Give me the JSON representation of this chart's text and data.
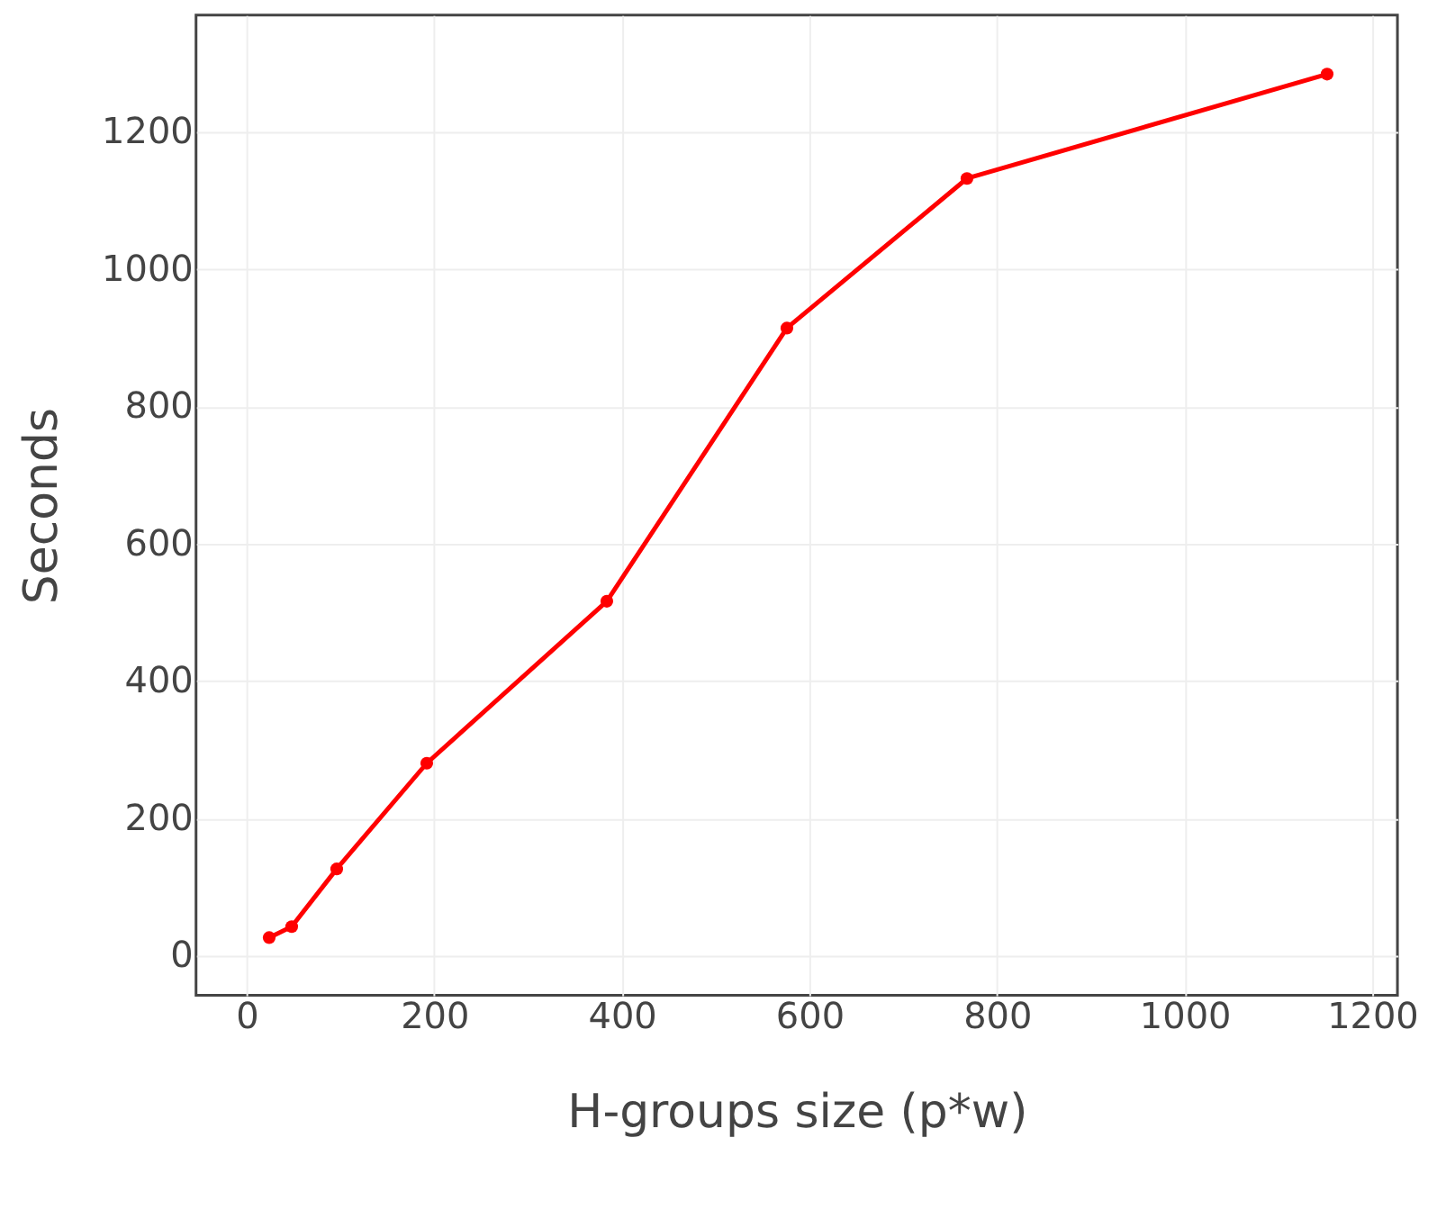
{
  "chart_data": {
    "type": "line",
    "xlabel": "H-groups size (p*w)",
    "ylabel": "Seconds",
    "x": [
      24,
      48,
      96,
      192,
      384,
      576,
      768,
      1152
    ],
    "series": [
      {
        "color": "#ff0000",
        "values": [
          26,
          42,
          126,
          280,
          516,
          914,
          1132,
          1284
        ]
      }
    ],
    "xlim": [
      -54,
      1227
    ],
    "ylim": [
      -58,
      1370
    ],
    "xticks": [
      0,
      200,
      400,
      600,
      800,
      1000,
      1200
    ],
    "yticks": [
      0,
      200,
      400,
      600,
      800,
      1000,
      1200
    ],
    "grid": true,
    "marker": "circle",
    "line_style": "solid"
  }
}
